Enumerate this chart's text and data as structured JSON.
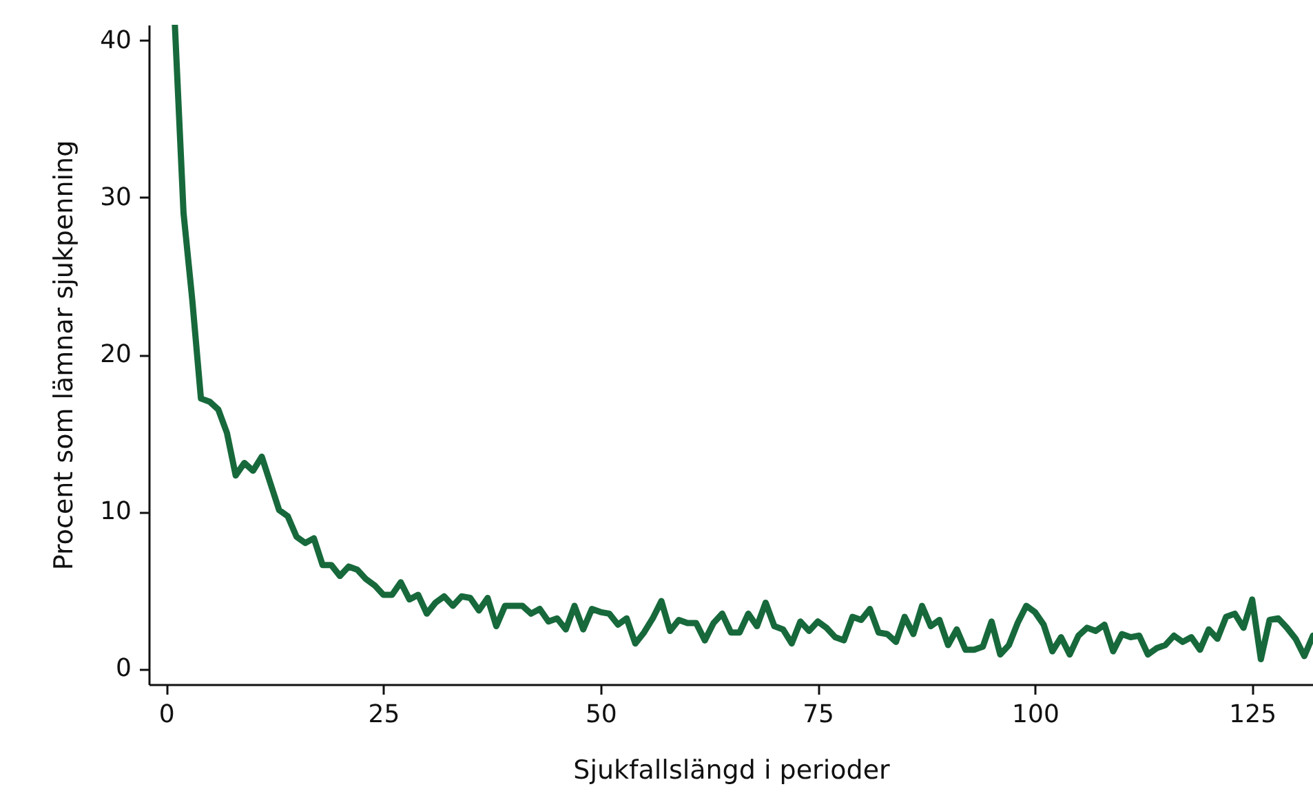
{
  "chart_data": {
    "type": "line",
    "xlabel": "Sjukfallslängd i perioder",
    "ylabel": "Procent som lämnar sjukpenning",
    "x": [
      1,
      2,
      3,
      4,
      5,
      6,
      7,
      8,
      9,
      10,
      11,
      12,
      13,
      14,
      15,
      16,
      17,
      18,
      19,
      20,
      21,
      22,
      23,
      24,
      25,
      26,
      27,
      28,
      29,
      30,
      31,
      32,
      33,
      34,
      35,
      36,
      37,
      38,
      39,
      40,
      41,
      42,
      43,
      44,
      45,
      46,
      47,
      48,
      49,
      50,
      51,
      52,
      53,
      54,
      55,
      56,
      57,
      58,
      59,
      60,
      61,
      62,
      63,
      64,
      65,
      66,
      67,
      68,
      69,
      70,
      71,
      72,
      73,
      74,
      75,
      76,
      77,
      78,
      79,
      80,
      81,
      82,
      83,
      84,
      85,
      86,
      87,
      88,
      89,
      90,
      91,
      92,
      93,
      94,
      95,
      96,
      97,
      98,
      99,
      100,
      101,
      102,
      103,
      104,
      105,
      106,
      107,
      108,
      109,
      110,
      111,
      112,
      113,
      114,
      115,
      116,
      117,
      118,
      119,
      120,
      121,
      122,
      123,
      124,
      125,
      126,
      127,
      128,
      129,
      130,
      131,
      132
    ],
    "series": [
      {
        "color": "#17693b",
        "values": [
          41,
          29,
          23.5,
          17.2,
          17,
          16.5,
          15,
          12.3,
          13.1,
          12.6,
          13.5,
          11.8,
          10.1,
          9.7,
          8.4,
          8,
          8.3,
          6.6,
          6.6,
          5.9,
          6.5,
          6.3,
          5.7,
          5.3,
          4.7,
          4.7,
          5.5,
          4.4,
          4.7,
          3.5,
          4.2,
          4.6,
          4,
          4.6,
          4.5,
          3.7,
          4.5,
          2.7,
          4,
          4,
          4,
          3.5,
          3.8,
          3,
          3.2,
          2.5,
          4,
          2.5,
          3.8,
          3.6,
          3.5,
          2.8,
          3.2,
          1.6,
          2.3,
          3.2,
          4.3,
          2.4,
          3.1,
          2.9,
          2.9,
          1.8,
          2.9,
          3.5,
          2.3,
          2.3,
          3.5,
          2.7,
          4.2,
          2.7,
          2.5,
          1.6,
          3,
          2.4,
          3,
          2.6,
          2,
          1.8,
          3.3,
          3.1,
          3.8,
          2.3,
          2.2,
          1.7,
          3.3,
          2.2,
          4,
          2.7,
          3.1,
          1.5,
          2.5,
          1.2,
          1.2,
          1.4,
          3,
          0.9,
          1.5,
          2.9,
          4,
          3.6,
          2.8,
          1.1,
          2,
          0.9,
          2.1,
          2.6,
          2.4,
          2.8,
          1.1,
          2.2,
          2,
          2.1,
          0.9,
          1.3,
          1.5,
          2.1,
          1.7,
          2,
          1.2,
          2.5,
          1.9,
          3.3,
          3.5,
          2.6,
          4.4,
          0.6,
          3.1,
          3.2,
          2.6,
          1.9,
          0.8,
          2.1
        ]
      }
    ],
    "xlim": [
      -2,
      132
    ],
    "xticks": [
      0,
      25,
      50,
      75,
      100,
      125
    ],
    "ylim": [
      -1,
      41
    ],
    "yticks": [
      0,
      10,
      20,
      30,
      40
    ],
    "grid": false,
    "marker": "none",
    "line_style": "solid"
  }
}
